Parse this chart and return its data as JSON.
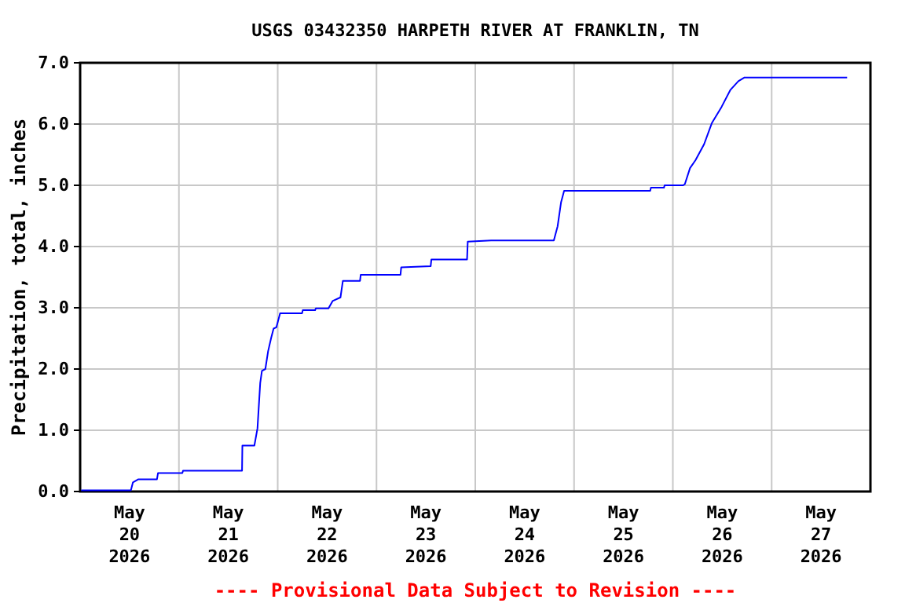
{
  "chart_data": {
    "type": "line",
    "title": "USGS 03432350 HARPETH RIVER AT FRANKLIN, TN",
    "ylabel": "Precipitation, total, inches",
    "annotations": [
      "---- Provisional Data Subject to Revision ----"
    ],
    "grid": true,
    "xlim": [
      "2026-05-20",
      "2026-05-28"
    ],
    "xticks": [
      {
        "value": "2026-05-20",
        "label": null
      },
      {
        "value": "2026-05-20T12:00",
        "label": "May 20 2026"
      },
      {
        "value": "2026-05-21",
        "label": null
      },
      {
        "value": "2026-05-21T12:00",
        "label": "May 21 2026"
      },
      {
        "value": "2026-05-22",
        "label": null
      },
      {
        "value": "2026-05-22T12:00",
        "label": "May 22 2026"
      },
      {
        "value": "2026-05-23",
        "label": null
      },
      {
        "value": "2026-05-23T12:00",
        "label": "May 23 2026"
      },
      {
        "value": "2026-05-24",
        "label": null
      },
      {
        "value": "2026-05-24T12:00",
        "label": "May 24 2026"
      },
      {
        "value": "2026-05-25",
        "label": null
      },
      {
        "value": "2026-05-25T12:00",
        "label": "May 25 2026"
      },
      {
        "value": "2026-05-26",
        "label": null
      },
      {
        "value": "2026-05-26T12:00",
        "label": "May 26 2026"
      },
      {
        "value": "2026-05-27",
        "label": null
      },
      {
        "value": "2026-05-27T12:00",
        "label": "May 27 2026"
      },
      {
        "value": "2026-05-28",
        "label": null
      }
    ],
    "ylim": [
      0,
      7
    ],
    "yticks": [
      {
        "value": 0,
        "label": "0.0"
      },
      {
        "value": 1,
        "label": "1.0"
      },
      {
        "value": 2,
        "label": "2.0"
      },
      {
        "value": 3,
        "label": "3.0"
      },
      {
        "value": 4,
        "label": "4.0"
      },
      {
        "value": 5,
        "label": "5.0"
      },
      {
        "value": 6,
        "label": "6.0"
      },
      {
        "value": 7,
        "label": "7.0"
      }
    ],
    "series": [
      {
        "color": "#0000ff",
        "x": [
          "2026-05-20T00:15",
          "2026-05-20T12:20",
          "2026-05-20T12:50",
          "2026-05-20T14:10",
          "2026-05-20T18:40",
          "2026-05-20T18:55",
          "2026-05-21T00:50",
          "2026-05-21T01:00",
          "2026-05-21T15:20",
          "2026-05-21T15:25",
          "2026-05-21T18:20",
          "2026-05-21T19:05",
          "2026-05-21T19:45",
          "2026-05-21T20:10",
          "2026-05-21T21:00",
          "2026-05-21T21:40",
          "2026-05-21T22:25",
          "2026-05-21T23:00",
          "2026-05-21T23:40",
          "2026-05-22T00:35",
          "2026-05-22T05:55",
          "2026-05-22T06:05",
          "2026-05-22T09:05",
          "2026-05-22T09:15",
          "2026-05-22T12:20",
          "2026-05-22T13:20",
          "2026-05-22T15:15",
          "2026-05-22T15:50",
          "2026-05-22T20:00",
          "2026-05-22T20:10",
          "2026-05-23T05:50",
          "2026-05-23T06:00",
          "2026-05-23T13:10",
          "2026-05-23T13:20",
          "2026-05-23T22:00",
          "2026-05-23T22:10",
          "2026-05-24T03:50",
          "2026-05-24T19:05",
          "2026-05-24T20:00",
          "2026-05-24T20:50",
          "2026-05-24T21:35",
          "2026-05-25T18:30",
          "2026-05-25T18:40",
          "2026-05-25T21:50",
          "2026-05-25T22:00",
          "2026-05-26T02:30",
          "2026-05-26T02:55",
          "2026-05-26T04:10",
          "2026-05-26T05:30",
          "2026-05-26T07:35",
          "2026-05-26T09:30",
          "2026-05-26T11:50",
          "2026-05-26T14:00",
          "2026-05-26T15:55",
          "2026-05-26T17:25",
          "2026-05-27T18:20"
        ],
        "values": [
          0.02,
          0.02,
          0.15,
          0.2,
          0.2,
          0.3,
          0.3,
          0.34,
          0.34,
          0.75,
          0.75,
          1.03,
          1.77,
          1.97,
          2.0,
          2.29,
          2.51,
          2.66,
          2.68,
          2.91,
          2.91,
          2.96,
          2.96,
          2.99,
          2.99,
          3.11,
          3.17,
          3.44,
          3.44,
          3.54,
          3.54,
          3.66,
          3.68,
          3.79,
          3.79,
          4.08,
          4.1,
          4.1,
          4.33,
          4.72,
          4.91,
          4.91,
          4.96,
          4.96,
          5.0,
          5.0,
          5.02,
          5.28,
          5.41,
          5.67,
          6.02,
          6.28,
          6.56,
          6.7,
          6.76,
          6.76
        ]
      }
    ]
  }
}
